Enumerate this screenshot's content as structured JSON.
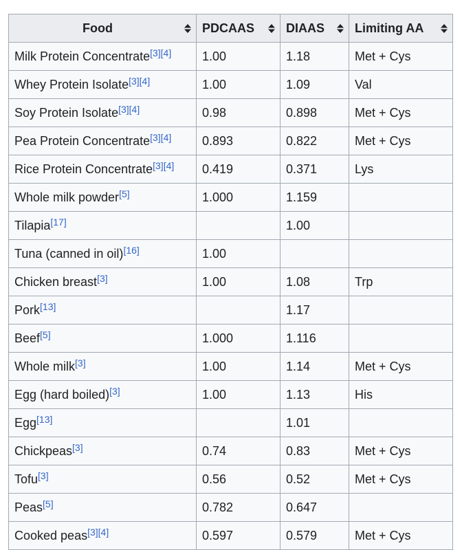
{
  "table": {
    "headers": [
      "Food",
      "PDCAAS",
      "DIAAS",
      "Limiting AA"
    ],
    "rows": [
      {
        "food": "Milk Protein Concentrate",
        "refs": [
          "[3]",
          "[4]"
        ],
        "pdcaas": "1.00",
        "diaas": "1.18",
        "limiting": "Met + Cys"
      },
      {
        "food": "Whey Protein Isolate",
        "refs": [
          "[3]",
          "[4]"
        ],
        "pdcaas": "1.00",
        "diaas": "1.09",
        "limiting": "Val"
      },
      {
        "food": "Soy Protein Isolate",
        "refs": [
          "[3]",
          "[4]"
        ],
        "pdcaas": "0.98",
        "diaas": "0.898",
        "limiting": "Met + Cys"
      },
      {
        "food": "Pea Protein Concentrate",
        "refs": [
          "[3]",
          "[4]"
        ],
        "pdcaas": "0.893",
        "diaas": "0.822",
        "limiting": "Met + Cys"
      },
      {
        "food": "Rice Protein Concentrate",
        "refs": [
          "[3]",
          "[4]"
        ],
        "pdcaas": "0.419",
        "diaas": "0.371",
        "limiting": "Lys"
      },
      {
        "food": "Whole milk powder",
        "refs": [
          "[5]"
        ],
        "pdcaas": "1.000",
        "diaas": "1.159"
      },
      {
        "food": "Tilapia",
        "refs": [
          "[17]"
        ],
        "diaas": "1.00"
      },
      {
        "food": "Tuna (canned in oil)",
        "refs": [
          "[16]"
        ],
        "pdcaas": "1.00"
      },
      {
        "food": "Chicken breast",
        "refs": [
          "[3]"
        ],
        "pdcaas": "1.00",
        "diaas": "1.08",
        "limiting": "Trp"
      },
      {
        "food": "Pork",
        "refs": [
          "[13]"
        ],
        "diaas": "1.17"
      },
      {
        "food": "Beef",
        "refs": [
          "[5]"
        ],
        "pdcaas": "1.000",
        "diaas": "1.116"
      },
      {
        "food": "Whole milk",
        "refs": [
          "[3]"
        ],
        "pdcaas": "1.00",
        "diaas": "1.14",
        "limiting": "Met + Cys"
      },
      {
        "food": "Egg (hard boiled)",
        "refs": [
          "[3]"
        ],
        "pdcaas": "1.00",
        "diaas": "1.13",
        "limiting": "His"
      },
      {
        "food": "Egg",
        "refs": [
          "[13]"
        ],
        "diaas": "1.01"
      },
      {
        "food": "Chickpeas",
        "refs": [
          "[3]"
        ],
        "pdcaas": "0.74",
        "diaas": "0.83",
        "limiting": "Met + Cys"
      },
      {
        "food": "Tofu",
        "refs": [
          "[3]"
        ],
        "pdcaas": "0.56",
        "diaas": "0.52",
        "limiting": "Met + Cys"
      },
      {
        "food": "Peas",
        "refs": [
          "[5]"
        ],
        "pdcaas": "0.782",
        "diaas": "0.647"
      },
      {
        "food": "Cooked peas",
        "refs": [
          "[3]",
          "[4]"
        ],
        "pdcaas": "0.597",
        "diaas": "0.579",
        "limiting": "Met + Cys"
      }
    ]
  }
}
